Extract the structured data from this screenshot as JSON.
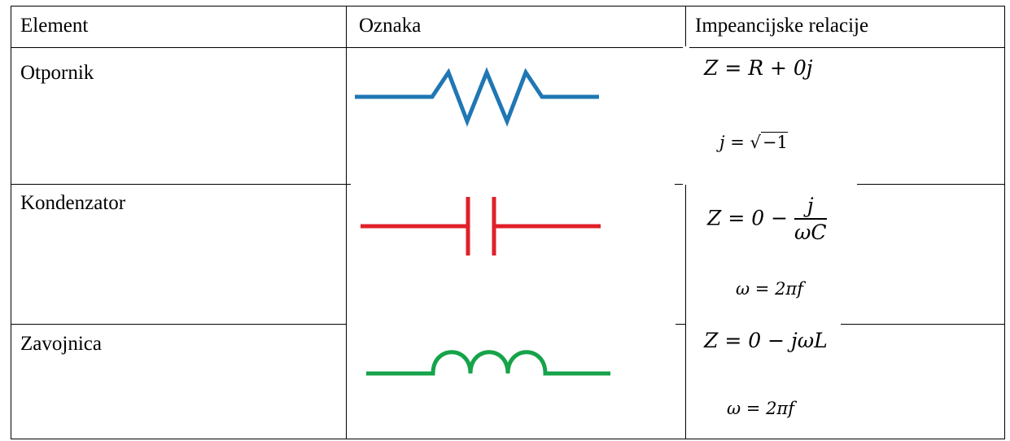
{
  "headers": [
    "Element",
    "Oznaka",
    "Impeancijske relacije"
  ],
  "rows": [
    {
      "element": "Otpornik",
      "symbol_icon": "resistor-icon",
      "symbol_color": "#1f77b4",
      "formula_main_lhs": "Z",
      "formula_main_rhs": "= R + 0j",
      "formula_sub_lhs": "j",
      "formula_sub_eq": "=",
      "formula_sub_radical": "−1"
    },
    {
      "element": "Kondenzator",
      "symbol_icon": "capacitor-icon",
      "symbol_color": "#e0202a",
      "formula_main_lhs": "Z",
      "formula_main_mid": "= 0 −",
      "formula_frac_num": "j",
      "formula_frac_den": "ωC",
      "formula_sub": "ω = 2πf"
    },
    {
      "element": "Zavojnica",
      "symbol_icon": "inductor-icon",
      "symbol_color": "#16a34a",
      "formula_main": "Z = 0 − jωL",
      "formula_sub": "ω = 2πf"
    }
  ]
}
